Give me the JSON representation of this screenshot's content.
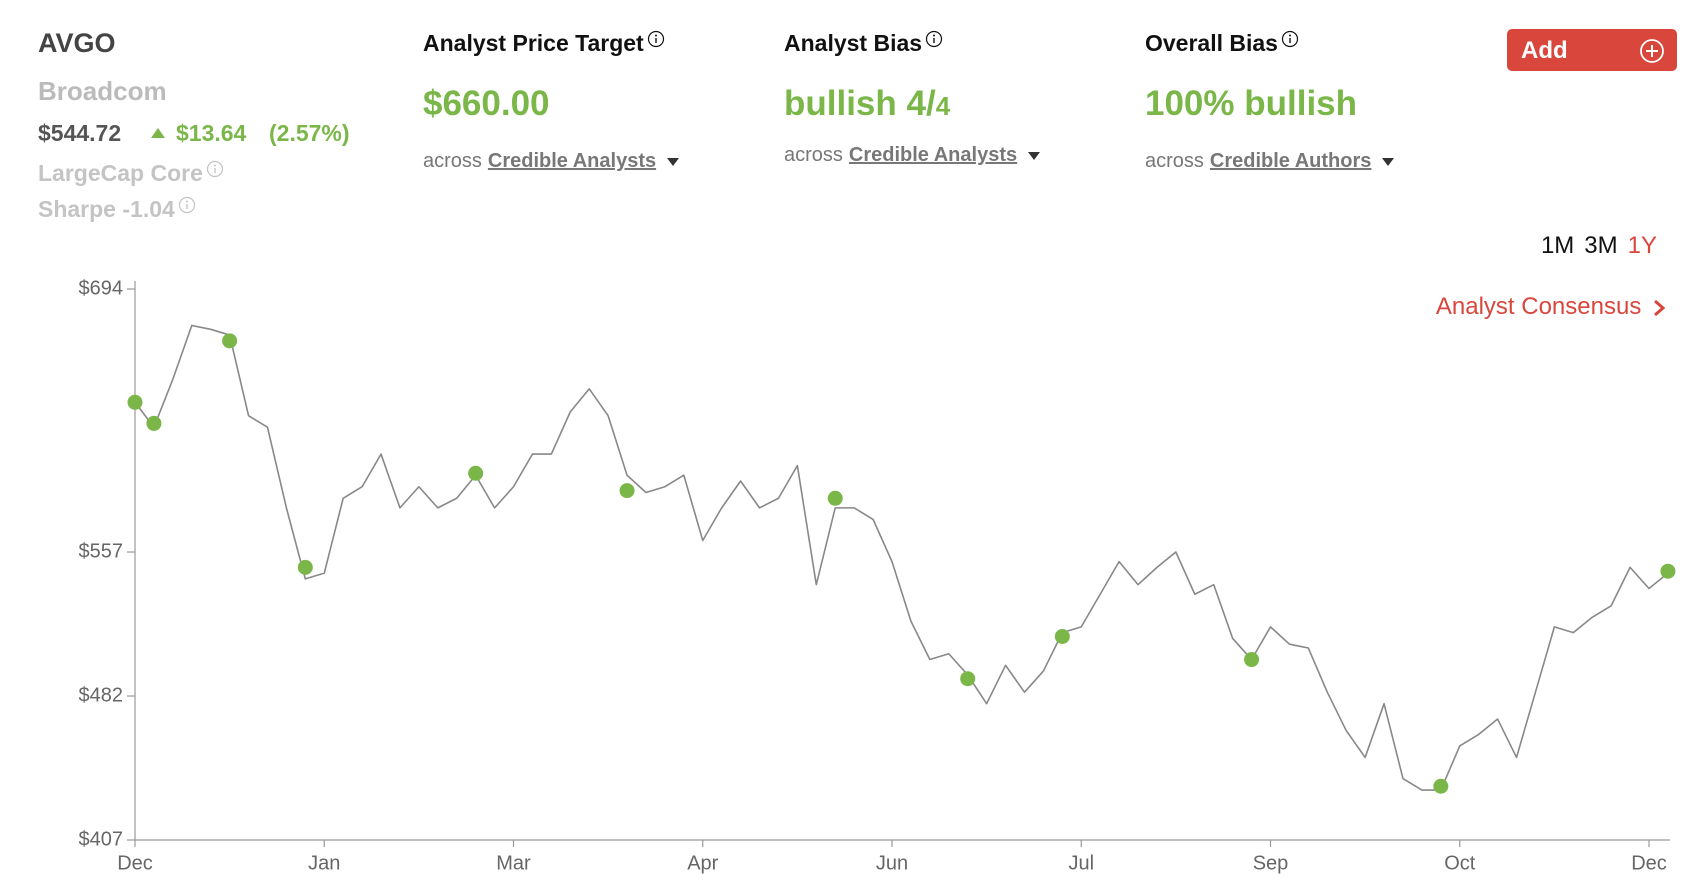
{
  "header": {
    "ticker": "AVGO",
    "name": "Broadcom",
    "price": "$544.72",
    "change": "$13.64",
    "change_pct": "(2.57%)",
    "style": "LargeCap Core",
    "sharpe": "Sharpe -1.04"
  },
  "columns": [
    {
      "title": "Analyst Price Target",
      "value": "$660.00",
      "prefix": "across",
      "link": "Credible Analysts"
    },
    {
      "title": "Analyst Bias",
      "value": "bullish 4/",
      "value_small": "4",
      "prefix": "across",
      "link": "Credible Analysts"
    },
    {
      "title": "Overall Bias",
      "value": "100% bullish",
      "prefix": "across",
      "link": "Credible Authors"
    }
  ],
  "add_button": "Add",
  "ranges": [
    "1M",
    "3M",
    "1Y"
  ],
  "active_range": 2,
  "consensus_link": "Analyst Consensus",
  "chart_data": {
    "type": "line",
    "categories": [
      "Dec",
      null,
      null,
      null,
      null,
      null,
      null,
      null,
      null,
      null,
      "Jan",
      null,
      null,
      null,
      null,
      null,
      null,
      null,
      null,
      null,
      "Mar",
      null,
      null,
      null,
      null,
      null,
      null,
      null,
      null,
      null,
      "Apr",
      null,
      null,
      null,
      null,
      null,
      null,
      null,
      null,
      null,
      "Jun",
      null,
      null,
      null,
      null,
      null,
      null,
      null,
      null,
      null,
      "Jul",
      null,
      null,
      null,
      null,
      null,
      null,
      null,
      null,
      null,
      "Sep",
      null,
      null,
      null,
      null,
      null,
      null,
      null,
      null,
      null,
      "Oct",
      null,
      null,
      null,
      null,
      null,
      null,
      null,
      null,
      null,
      "Dec",
      null
    ],
    "series": [
      {
        "color": "#888888",
        "style": "line",
        "values": [
          635,
          622,
          647,
          675,
          673,
          670,
          628,
          622,
          580,
          543,
          546,
          585,
          591,
          608,
          580,
          591,
          580,
          585,
          597,
          580,
          591,
          608,
          608,
          630,
          642,
          628,
          597,
          588,
          591,
          597,
          563,
          580,
          594,
          580,
          585,
          602,
          540,
          580,
          580,
          574,
          552,
          521,
          501,
          504,
          493,
          478,
          498,
          484,
          495,
          515,
          518,
          535,
          552,
          540,
          549,
          557,
          535,
          540,
          512,
          501,
          518,
          509,
          507,
          484,
          464,
          450,
          478,
          439,
          433,
          433,
          456,
          462,
          470,
          450,
          484,
          518,
          515,
          523,
          529,
          549,
          538,
          546
        ]
      },
      {
        "color": "#7ab648",
        "style": "marker",
        "values": [
          635,
          624,
          null,
          null,
          null,
          667,
          null,
          null,
          null,
          549,
          null,
          null,
          null,
          null,
          null,
          null,
          null,
          null,
          598,
          null,
          null,
          null,
          null,
          null,
          null,
          null,
          589,
          null,
          null,
          null,
          null,
          null,
          null,
          null,
          null,
          null,
          null,
          585,
          null,
          null,
          null,
          null,
          null,
          null,
          491,
          null,
          null,
          null,
          null,
          513,
          null,
          null,
          null,
          null,
          null,
          null,
          null,
          null,
          null,
          501,
          null,
          null,
          null,
          null,
          null,
          null,
          null,
          null,
          null,
          435,
          null,
          null,
          null,
          null,
          null,
          null,
          null,
          null,
          null,
          null,
          null,
          547
        ]
      }
    ],
    "ylim": [
      407,
      694
    ],
    "yticks": [
      {
        "value": 694,
        "label": "$694"
      },
      {
        "value": 557,
        "label": "$557"
      },
      {
        "value": 482,
        "label": "$482"
      },
      {
        "value": 407,
        "label": "$407"
      }
    ]
  }
}
